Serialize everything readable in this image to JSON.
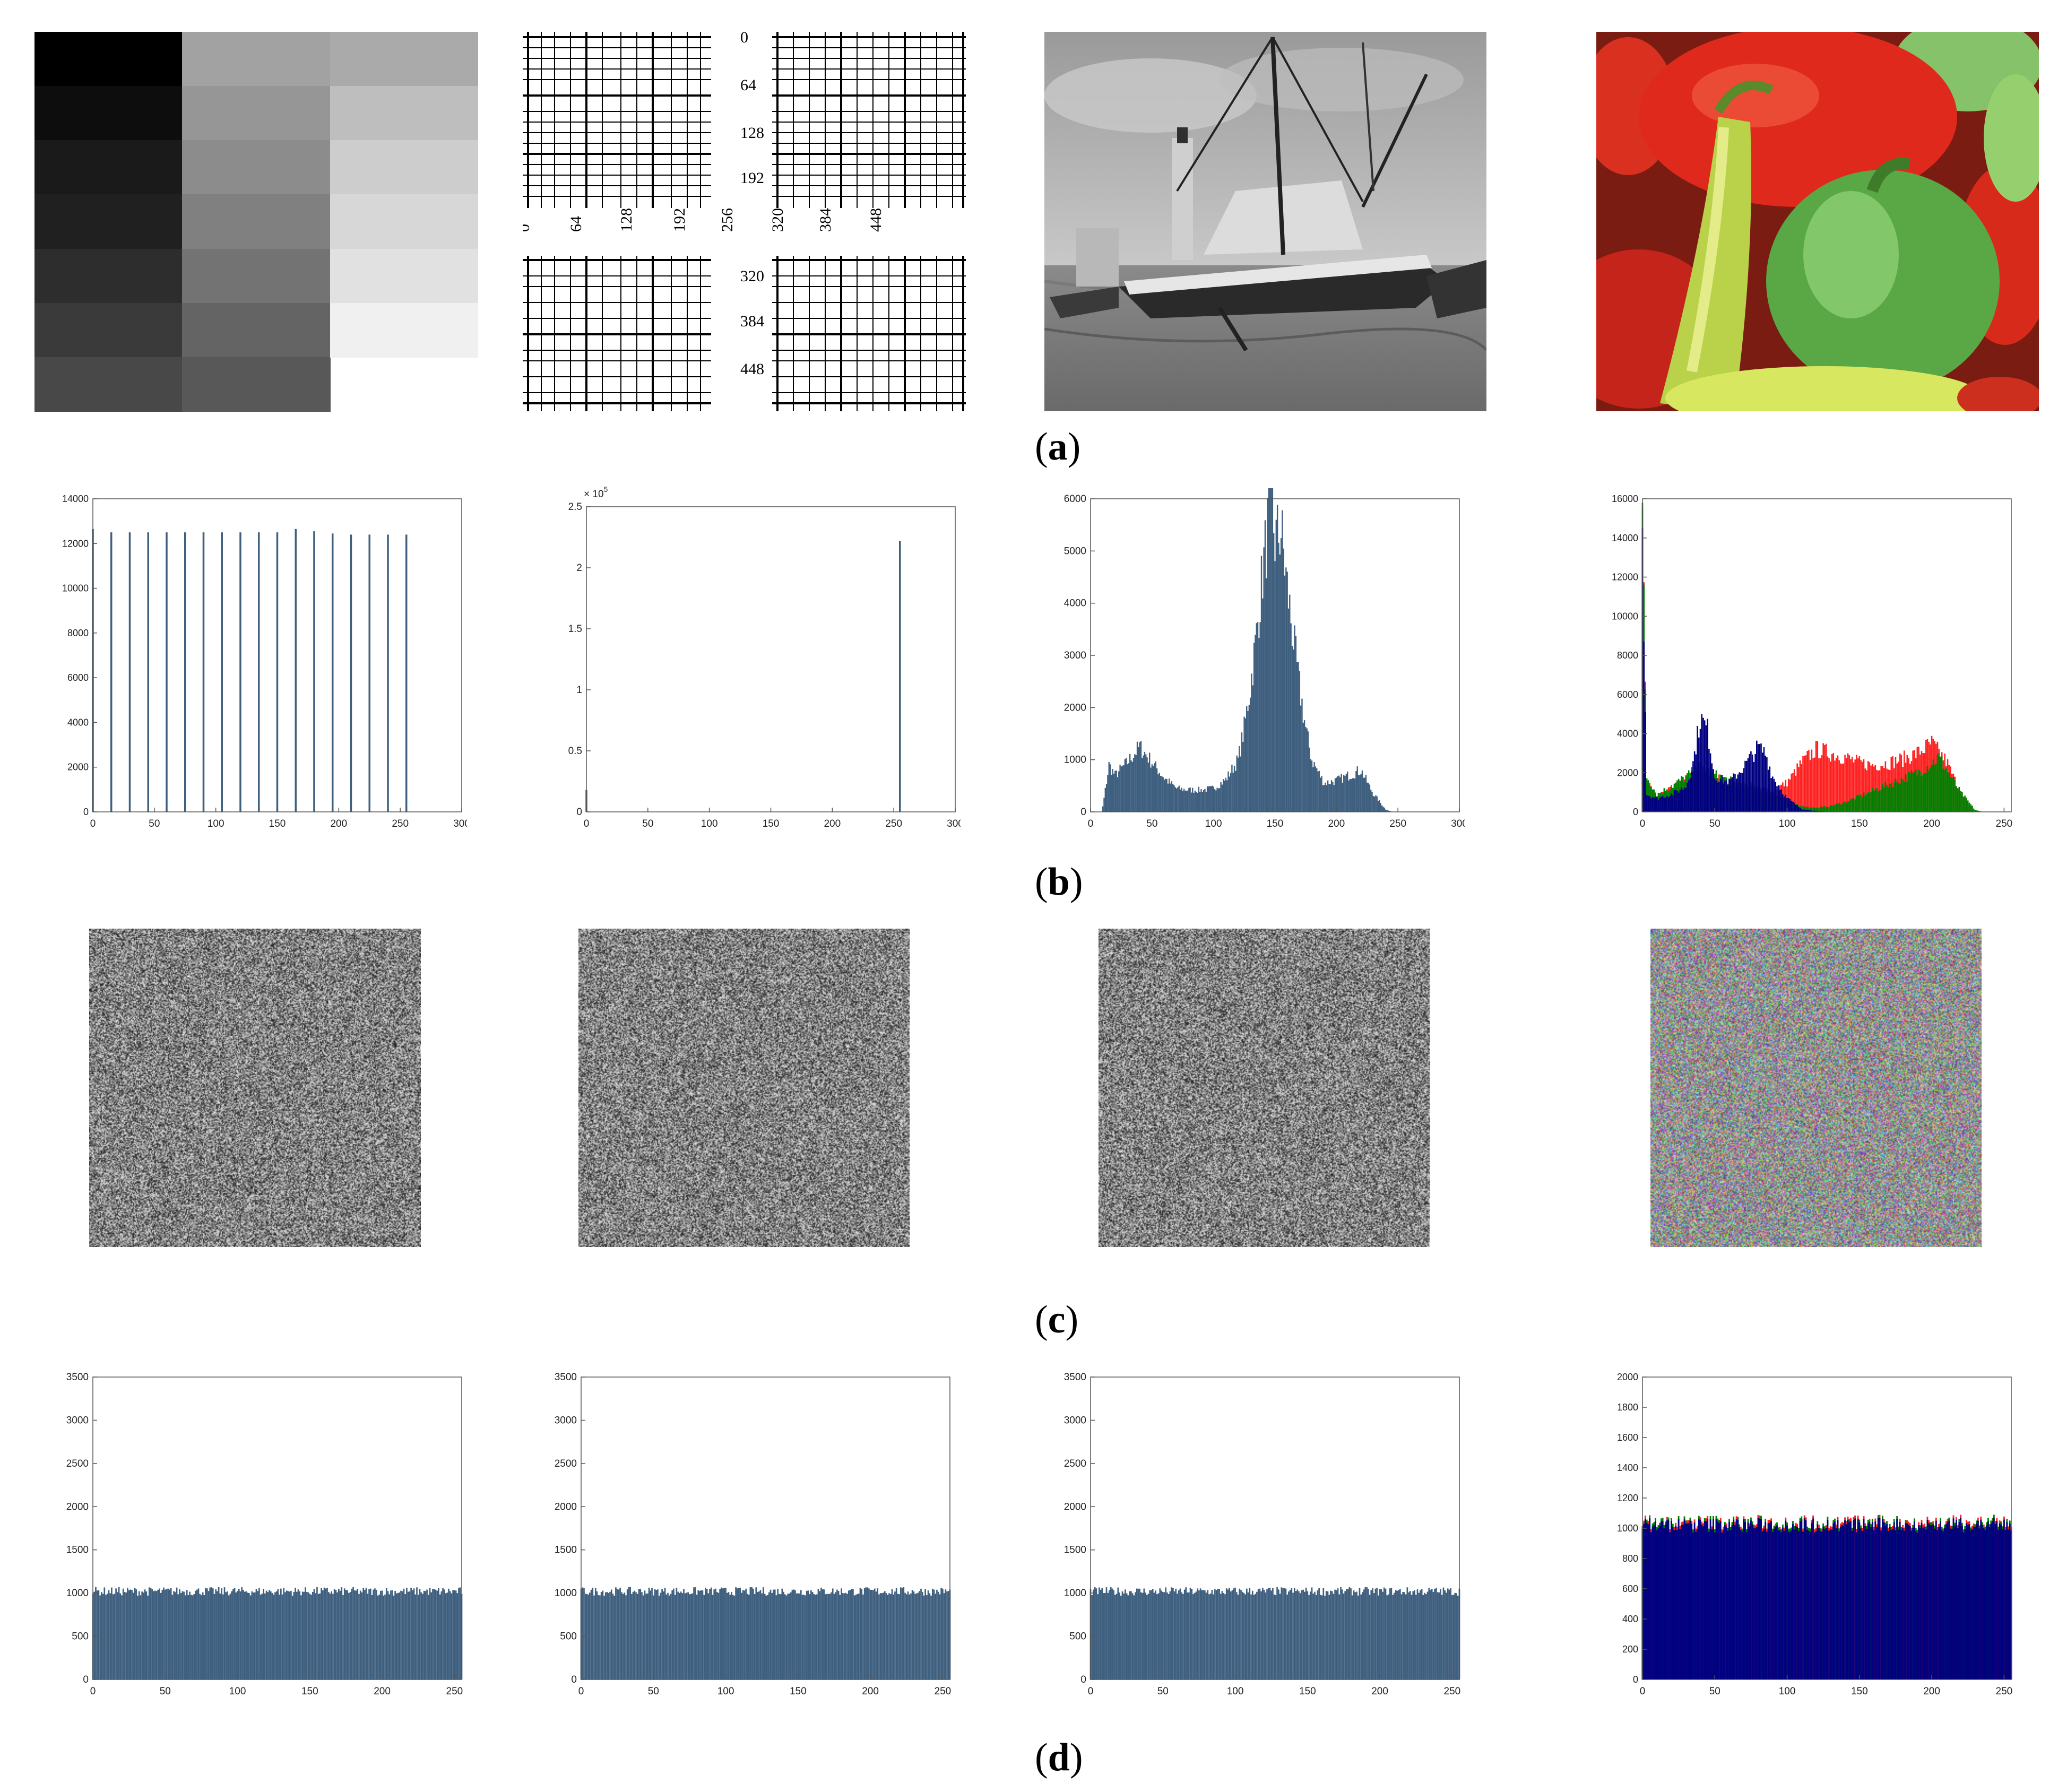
{
  "figure": {
    "captions": [
      {
        "open": "(",
        "letter": "a",
        "close": ")"
      },
      {
        "open": "(",
        "letter": "b",
        "close": ")"
      },
      {
        "open": "(",
        "letter": "c",
        "close": ")"
      },
      {
        "open": "(",
        "letter": "d",
        "close": ")"
      }
    ],
    "row_a": {
      "gray_levels": [
        0,
        13,
        26,
        32,
        45,
        58,
        72,
        162,
        150,
        140,
        128,
        115,
        100,
        88,
        170,
        190,
        205,
        215,
        225,
        240
      ],
      "grid_ruler_labels": {
        "vertical": [
          "0",
          "64",
          "128",
          "192",
          "320",
          "384",
          "448"
        ],
        "horizontal": [
          "0",
          "64",
          "128",
          "192",
          "256",
          "320",
          "384",
          "448"
        ]
      }
    },
    "colors": {
      "bar": "#3f5f7f",
      "red": "#ff2020",
      "green": "#008000",
      "blue": "#000080",
      "axis": "#555555"
    }
  },
  "chart_data": [
    {
      "type": "bar",
      "panel": "b1",
      "x": [
        0,
        15,
        30,
        45,
        60,
        75,
        90,
        105,
        120,
        135,
        150,
        165,
        180,
        195,
        210,
        225,
        240,
        255
      ],
      "values": [
        12650,
        12500,
        12500,
        12500,
        12500,
        12500,
        12500,
        12500,
        12500,
        12500,
        12500,
        12650,
        12550,
        12450,
        12400,
        12400,
        12400,
        12400
      ],
      "xlim": [
        0,
        300
      ],
      "ylim": [
        0,
        14000
      ],
      "xticks": [
        "0",
        "50",
        "100",
        "150",
        "200",
        "250",
        "300"
      ],
      "yticks": [
        "0",
        "2000",
        "4000",
        "6000",
        "8000",
        "10000",
        "12000",
        "14000"
      ],
      "grid": false
    },
    {
      "type": "bar",
      "panel": "b2",
      "x": [
        0,
        255
      ],
      "values": [
        0.18,
        2.22
      ],
      "xlim": [
        0,
        300
      ],
      "ylim": [
        0,
        2.5
      ],
      "xticks": [
        "0",
        "50",
        "100",
        "150",
        "200",
        "250",
        "300"
      ],
      "yticks": [
        "0",
        "0.5",
        "1",
        "1.5",
        "2",
        "2.5"
      ],
      "yscale_note": "10^5",
      "exp_base": "10",
      "exp_power": "5",
      "exp_times": "×",
      "grid": false
    },
    {
      "type": "bar",
      "panel": "b3",
      "profile": [
        [
          10,
          100
        ],
        [
          15,
          900
        ],
        [
          20,
          700
        ],
        [
          30,
          950
        ],
        [
          40,
          1250
        ],
        [
          50,
          950
        ],
        [
          60,
          650
        ],
        [
          70,
          450
        ],
        [
          80,
          420
        ],
        [
          90,
          420
        ],
        [
          100,
          450
        ],
        [
          110,
          620
        ],
        [
          120,
          1000
        ],
        [
          125,
          1600
        ],
        [
          130,
          2400
        ],
        [
          135,
          3400
        ],
        [
          140,
          4600
        ],
        [
          145,
          5600
        ],
        [
          148,
          5750
        ],
        [
          150,
          5200
        ],
        [
          155,
          5400
        ],
        [
          160,
          4300
        ],
        [
          165,
          3300
        ],
        [
          170,
          2400
        ],
        [
          175,
          1600
        ],
        [
          180,
          1000
        ],
        [
          190,
          550
        ],
        [
          200,
          600
        ],
        [
          210,
          700
        ],
        [
          220,
          800
        ],
        [
          230,
          350
        ],
        [
          240,
          50
        ],
        [
          245,
          0
        ]
      ],
      "xlim": [
        0,
        300
      ],
      "ylim": [
        0,
        6000
      ],
      "xticks": [
        "0",
        "50",
        "100",
        "150",
        "200",
        "250",
        "300"
      ],
      "yticks": [
        "0",
        "1000",
        "2000",
        "3000",
        "4000",
        "5000",
        "6000"
      ],
      "grid": false
    },
    {
      "type": "bar",
      "panel": "b4",
      "series": [
        {
          "name": "R",
          "profile": [
            [
              0,
              15500
            ],
            [
              3,
              1500
            ],
            [
              10,
              800
            ],
            [
              20,
              1200
            ],
            [
              30,
              1600
            ],
            [
              40,
              2200
            ],
            [
              50,
              1800
            ],
            [
              60,
              1500
            ],
            [
              70,
              1300
            ],
            [
              80,
              1200
            ],
            [
              90,
              1100
            ],
            [
              100,
              1500
            ],
            [
              110,
              2500
            ],
            [
              120,
              3200
            ],
            [
              130,
              3000
            ],
            [
              140,
              2800
            ],
            [
              150,
              2500
            ],
            [
              160,
              2400
            ],
            [
              170,
              2500
            ],
            [
              180,
              2700
            ],
            [
              190,
              3000
            ],
            [
              200,
              3500
            ],
            [
              210,
              2600
            ],
            [
              220,
              1000
            ],
            [
              225,
              300
            ],
            [
              230,
              0
            ]
          ]
        },
        {
          "name": "G",
          "profile": [
            [
              0,
              15800
            ],
            [
              3,
              1800
            ],
            [
              10,
              900
            ],
            [
              20,
              1300
            ],
            [
              30,
              1800
            ],
            [
              40,
              2300
            ],
            [
              50,
              1900
            ],
            [
              60,
              1600
            ],
            [
              70,
              1400
            ],
            [
              80,
              1300
            ],
            [
              90,
              1000
            ],
            [
              100,
              600
            ],
            [
              110,
              300
            ],
            [
              120,
              200
            ],
            [
              130,
              300
            ],
            [
              140,
              500
            ],
            [
              150,
              800
            ],
            [
              160,
              1100
            ],
            [
              170,
              1400
            ],
            [
              180,
              1700
            ],
            [
              190,
              2000
            ],
            [
              200,
              2500
            ],
            [
              205,
              2800
            ],
            [
              210,
              2200
            ],
            [
              220,
              1000
            ],
            [
              230,
              100
            ],
            [
              235,
              0
            ]
          ]
        },
        {
          "name": "B",
          "profile": [
            [
              0,
              14500
            ],
            [
              3,
              900
            ],
            [
              10,
              700
            ],
            [
              20,
              900
            ],
            [
              30,
              1300
            ],
            [
              35,
              2500
            ],
            [
              40,
              4800
            ],
            [
              45,
              4200
            ],
            [
              50,
              1800
            ],
            [
              60,
              1500
            ],
            [
              70,
              2300
            ],
            [
              80,
              3300
            ],
            [
              85,
              3000
            ],
            [
              90,
              1800
            ],
            [
              100,
              700
            ],
            [
              110,
              150
            ],
            [
              120,
              50
            ],
            [
              130,
              0
            ]
          ]
        }
      ],
      "xlim": [
        0,
        255
      ],
      "ylim": [
        0,
        16000
      ],
      "xticks": [
        "0",
        "50",
        "100",
        "150",
        "200",
        "250"
      ],
      "yticks": [
        "0",
        "2000",
        "4000",
        "6000",
        "8000",
        "10000",
        "12000",
        "14000",
        "16000"
      ],
      "grid": false
    },
    {
      "type": "bar",
      "panel": "d1",
      "flat_level": 1020,
      "xlim": [
        0,
        255
      ],
      "ylim": [
        0,
        3500
      ],
      "xticks": [
        "0",
        "50",
        "100",
        "150",
        "200",
        "250"
      ],
      "yticks": [
        "0",
        "500",
        "1000",
        "1500",
        "2000",
        "2500",
        "3000",
        "3500"
      ],
      "grid": false
    },
    {
      "type": "bar",
      "panel": "d2",
      "flat_level": 1020,
      "xlim": [
        0,
        255
      ],
      "ylim": [
        0,
        3500
      ],
      "xticks": [
        "0",
        "50",
        "100",
        "150",
        "200",
        "250"
      ],
      "yticks": [
        "0",
        "500",
        "1000",
        "1500",
        "2000",
        "2500",
        "3000",
        "3500"
      ],
      "grid": false
    },
    {
      "type": "bar",
      "panel": "d3",
      "flat_level": 1020,
      "xlim": [
        0,
        255
      ],
      "ylim": [
        0,
        3500
      ],
      "xticks": [
        "0",
        "50",
        "100",
        "150",
        "200",
        "250"
      ],
      "yticks": [
        "0",
        "500",
        "1000",
        "1500",
        "2000",
        "2500",
        "3000",
        "3500"
      ],
      "grid": false
    },
    {
      "type": "bar",
      "panel": "d4",
      "flat_level": 1020,
      "xlim": [
        0,
        255
      ],
      "ylim": [
        0,
        2000
      ],
      "xticks": [
        "0",
        "50",
        "100",
        "150",
        "200",
        "250"
      ],
      "yticks": [
        "0",
        "200",
        "400",
        "600",
        "800",
        "1000",
        "1200",
        "1400",
        "1600",
        "1800",
        "2000"
      ],
      "grid": false
    }
  ]
}
